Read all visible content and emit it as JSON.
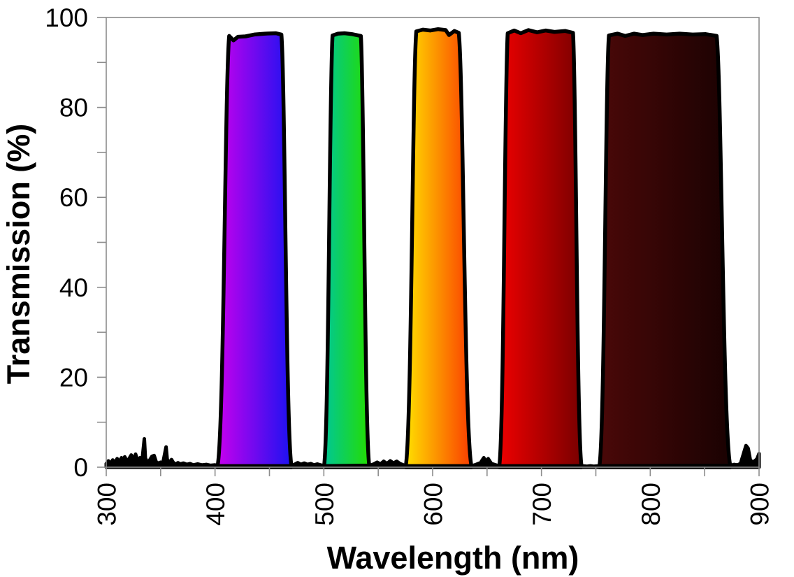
{
  "chart_data": {
    "type": "area",
    "title": "",
    "xlabel": "Wavelength (nm)",
    "ylabel": "Transmission (%)",
    "xlim": [
      300,
      900
    ],
    "ylim": [
      0,
      100
    ],
    "x_major_ticks": [
      300,
      400,
      500,
      600,
      700,
      800,
      900
    ],
    "x_minor_step": 50,
    "y_major_ticks": [
      0,
      20,
      40,
      60,
      80,
      100
    ],
    "y_minor_step": 10,
    "grid": false,
    "legend": "none",
    "axis_color": "#8c8c8c",
    "trace_color": "#000000",
    "bands": [
      {
        "name": "violet-blue-filter",
        "base_nm": [
          402,
          470.5
        ],
        "peak_pct": 96.5,
        "top_profile": [
          [
            413,
            95.9
          ],
          [
            417,
            94.9
          ],
          [
            421,
            95.7
          ],
          [
            428,
            95.8
          ],
          [
            436,
            96.2
          ],
          [
            446,
            96.4
          ],
          [
            456,
            96.5
          ],
          [
            461,
            96.2
          ]
        ],
        "gradient": [
          "#c800ee",
          "#1a12f0"
        ]
      },
      {
        "name": "green-filter",
        "base_nm": [
          500,
          542
        ],
        "peak_pct": 96.5,
        "top_profile": [
          [
            508,
            96.0
          ],
          [
            513,
            96.4
          ],
          [
            519,
            96.5
          ],
          [
            526,
            96.3
          ],
          [
            534,
            95.9
          ]
        ],
        "gradient": [
          "#00c796",
          "#24dd00"
        ]
      },
      {
        "name": "orange-filter",
        "base_nm": [
          575,
          636
        ],
        "peak_pct": 97.4,
        "top_profile": [
          [
            585,
            96.9
          ],
          [
            591,
            97.3
          ],
          [
            598,
            97.1
          ],
          [
            605,
            97.4
          ],
          [
            612,
            97.2
          ],
          [
            615,
            96.1
          ],
          [
            620,
            97.0
          ],
          [
            624,
            96.6
          ]
        ],
        "gradient": [
          "#ffe000",
          "#fa3c00"
        ]
      },
      {
        "name": "red-filter",
        "base_nm": [
          661,
          737
        ],
        "peak_pct": 97.2,
        "top_profile": [
          [
            669,
            96.5
          ],
          [
            675,
            97.1
          ],
          [
            681,
            96.5
          ],
          [
            688,
            97.2
          ],
          [
            696,
            96.7
          ],
          [
            704,
            97.1
          ],
          [
            712,
            96.8
          ],
          [
            722,
            97.0
          ],
          [
            729,
            96.6
          ]
        ],
        "gradient": [
          "#ee0000",
          "#780000"
        ]
      },
      {
        "name": "near-ir-filter",
        "base_nm": [
          753,
          874
        ],
        "peak_pct": 96.4,
        "top_profile": [
          [
            762,
            96.0
          ],
          [
            770,
            96.4
          ],
          [
            777,
            95.9
          ],
          [
            785,
            96.4
          ],
          [
            793,
            96.1
          ],
          [
            803,
            96.4
          ],
          [
            815,
            96.2
          ],
          [
            827,
            96.4
          ],
          [
            839,
            96.2
          ],
          [
            851,
            96.3
          ],
          [
            861,
            95.9
          ]
        ],
        "gradient": [
          "#4a0808",
          "#1a0202"
        ]
      }
    ],
    "baseline_noise": [
      [
        300,
        0.8
      ],
      [
        302,
        1.4
      ],
      [
        304,
        0.8
      ],
      [
        306,
        1.6
      ],
      [
        308,
        1.0
      ],
      [
        310,
        1.9
      ],
      [
        312,
        1.1
      ],
      [
        314,
        2.1
      ],
      [
        315,
        1.2
      ],
      [
        317,
        2.3
      ],
      [
        319,
        1.3
      ],
      [
        321,
        1.9
      ],
      [
        323,
        2.7
      ],
      [
        325,
        1.6
      ],
      [
        327,
        2.9
      ],
      [
        329,
        1.4
      ],
      [
        331,
        2.1
      ],
      [
        333,
        1.6
      ],
      [
        335,
        6.3
      ],
      [
        336,
        2.0
      ],
      [
        338,
        1.0
      ],
      [
        340,
        1.6
      ],
      [
        342,
        2.4
      ],
      [
        344,
        2.6
      ],
      [
        346,
        1.1
      ],
      [
        348,
        0.9
      ],
      [
        350,
        1.1
      ],
      [
        352,
        0.8
      ],
      [
        355,
        4.5
      ],
      [
        356,
        1.8
      ],
      [
        358,
        0.9
      ],
      [
        360,
        1.7
      ],
      [
        362,
        0.9
      ],
      [
        364,
        0.7
      ],
      [
        366,
        1.0
      ],
      [
        368,
        0.7
      ],
      [
        371,
        0.9
      ],
      [
        374,
        0.6
      ],
      [
        377,
        0.8
      ],
      [
        380,
        0.5
      ],
      [
        384,
        0.7
      ],
      [
        388,
        0.5
      ],
      [
        392,
        0.6
      ],
      [
        396,
        0.4
      ],
      [
        400,
        0.5
      ],
      [
        402,
        0.3
      ],
      [
        470,
        0.3
      ],
      [
        473,
        0.6
      ],
      [
        476,
        1.0
      ],
      [
        479,
        0.6
      ],
      [
        482,
        0.9
      ],
      [
        485,
        0.6
      ],
      [
        488,
        0.8
      ],
      [
        491,
        0.5
      ],
      [
        494,
        0.7
      ],
      [
        497,
        0.5
      ],
      [
        500,
        0.3
      ],
      [
        542,
        0.4
      ],
      [
        546,
        0.7
      ],
      [
        549,
        1.1
      ],
      [
        552,
        0.7
      ],
      [
        555,
        1.3
      ],
      [
        558,
        0.8
      ],
      [
        561,
        1.4
      ],
      [
        564,
        0.9
      ],
      [
        567,
        1.3
      ],
      [
        570,
        0.8
      ],
      [
        572,
        0.6
      ],
      [
        575,
        0.3
      ],
      [
        636,
        0.3
      ],
      [
        640,
        0.6
      ],
      [
        644,
        1.0
      ],
      [
        647,
        2.1
      ],
      [
        649,
        1.2
      ],
      [
        651,
        1.9
      ],
      [
        654,
        0.8
      ],
      [
        658,
        0.5
      ],
      [
        661,
        0.3
      ],
      [
        737,
        0.3
      ],
      [
        742,
        0.2
      ],
      [
        745,
        0.3
      ],
      [
        748,
        0.2
      ],
      [
        753,
        0.3
      ],
      [
        874,
        0.4
      ],
      [
        877,
        0.6
      ],
      [
        880,
        0.5
      ],
      [
        883,
        0.8
      ],
      [
        886,
        3.2
      ],
      [
        888,
        4.8
      ],
      [
        890,
        4.2
      ],
      [
        892,
        1.6
      ],
      [
        894,
        1.1
      ],
      [
        896,
        1.4
      ],
      [
        898,
        1.8
      ],
      [
        900,
        3.0
      ]
    ]
  }
}
